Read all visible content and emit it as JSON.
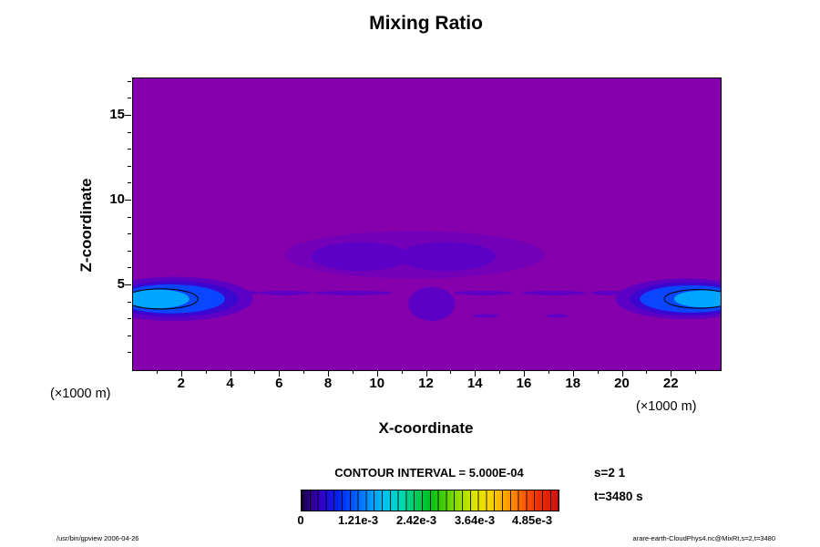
{
  "title": "Mixing Ratio",
  "axes": {
    "x_label": "X-coordinate",
    "y_label": "Z-coordinate",
    "unit_left": "(×1000 m)",
    "unit_right": "(×1000 m)"
  },
  "legend": {
    "contour_interval": "CONTOUR INTERVAL = 5.000E-04",
    "colorbar_ticks": [
      "0",
      "1.21e-3",
      "2.42e-3",
      "3.64e-3",
      "4.85e-3"
    ]
  },
  "annotations": {
    "s_label": "s=2 1",
    "t_label": "t=3480 s",
    "footer_left": "/usr/bin/gpview 2006-04-26",
    "footer_right": "arare-earth-CloudPhys4.nc@MixRt,s=2,t=3480"
  },
  "chart_data": {
    "type": "heatmap",
    "title": "Mixing Ratio",
    "xlabel": "X-coordinate (×1000 m)",
    "ylabel": "Z-coordinate (×1000 m)",
    "xlim": [
      0,
      24
    ],
    "ylim": [
      0,
      17.2
    ],
    "x_tick_labels": [
      2,
      4,
      6,
      8,
      10,
      12,
      14,
      16,
      18,
      20,
      22
    ],
    "y_tick_labels": [
      5,
      10,
      15
    ],
    "minor_tick_step": 1,
    "grid": false,
    "legend_position": "bottom",
    "contour_interval": 0.0005,
    "colorbar_tick_values": [
      0,
      0.00121,
      0.00242,
      0.00364,
      0.00485
    ],
    "colorbar_range": [
      0,
      0.00545
    ],
    "levels": {
      "base": "#8500ac",
      "l1": "#7300b8",
      "l2": "#5b00c4",
      "dblue": "#3a06d0",
      "blue": "#0a46ff",
      "cyan": "#00a6ff",
      "line": "#000000"
    },
    "features": [
      {
        "x": 11.5,
        "z": 6.8,
        "rx": 5.3,
        "rz": 1.4,
        "level": "l1"
      },
      {
        "x": 9.3,
        "z": 6.7,
        "rx": 2.0,
        "rz": 0.85,
        "level": "l2"
      },
      {
        "x": 12.8,
        "z": 6.7,
        "rx": 2.0,
        "rz": 0.85,
        "level": "l2"
      },
      {
        "x": 4.6,
        "z": 4.55,
        "rx": 0.5,
        "rz": 0.13,
        "level": "l2"
      },
      {
        "x": 6.2,
        "z": 4.55,
        "rx": 1.1,
        "rz": 0.13,
        "level": "l2"
      },
      {
        "x": 9.0,
        "z": 4.55,
        "rx": 1.6,
        "rz": 0.13,
        "level": "l2"
      },
      {
        "x": 14.3,
        "z": 4.55,
        "rx": 1.2,
        "rz": 0.13,
        "level": "l2"
      },
      {
        "x": 17.2,
        "z": 4.55,
        "rx": 1.3,
        "rz": 0.13,
        "level": "l2"
      },
      {
        "x": 19.4,
        "z": 4.55,
        "rx": 0.7,
        "rz": 0.13,
        "level": "l2"
      },
      {
        "x": 14.4,
        "z": 3.2,
        "rx": 0.55,
        "rz": 0.1,
        "level": "l2"
      },
      {
        "x": 17.3,
        "z": 3.2,
        "rx": 0.45,
        "rz": 0.1,
        "level": "l2"
      },
      {
        "x": 12.2,
        "z": 3.9,
        "rx": 0.95,
        "rz": 1.0,
        "level": "l2"
      },
      {
        "x": 1.7,
        "z": 4.2,
        "rx": 3.2,
        "rz": 1.3,
        "level": "l2"
      },
      {
        "x": 1.7,
        "z": 4.2,
        "rx": 2.6,
        "rz": 1.05,
        "level": "dblue"
      },
      {
        "x": 1.55,
        "z": 4.2,
        "rx": 2.2,
        "rz": 0.85,
        "level": "blue"
      },
      {
        "x": 1.0,
        "z": 4.2,
        "rx": 1.3,
        "rz": 0.55,
        "level": "cyan"
      },
      {
        "x": 1.15,
        "z": 4.2,
        "rx": 1.5,
        "rz": 0.6,
        "line": true
      },
      {
        "x": 22.6,
        "z": 4.2,
        "rx": 2.9,
        "rz": 1.2,
        "level": "l2"
      },
      {
        "x": 22.7,
        "z": 4.2,
        "rx": 2.4,
        "rz": 1.0,
        "level": "dblue"
      },
      {
        "x": 22.8,
        "z": 4.2,
        "rx": 2.1,
        "rz": 0.8,
        "level": "blue"
      },
      {
        "x": 23.3,
        "z": 4.2,
        "rx": 1.2,
        "rz": 0.5,
        "level": "cyan"
      },
      {
        "x": 23.1,
        "z": 4.2,
        "rx": 1.4,
        "rz": 0.55,
        "line": true
      }
    ]
  }
}
